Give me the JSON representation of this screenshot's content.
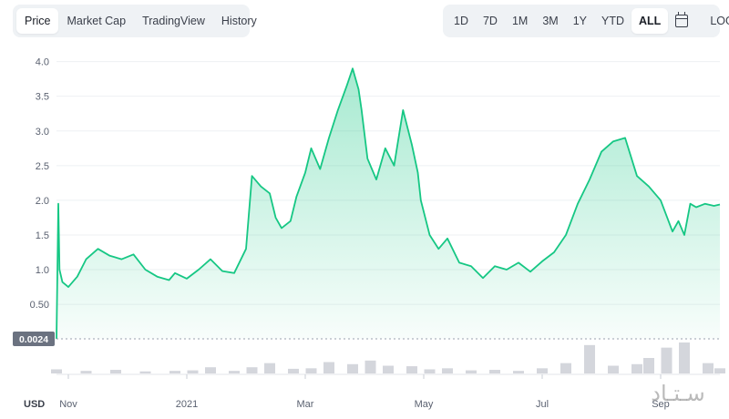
{
  "tabs": [
    {
      "label": "Price",
      "active": true
    },
    {
      "label": "Market Cap",
      "active": false
    },
    {
      "label": "TradingView",
      "active": false
    },
    {
      "label": "History",
      "active": false
    }
  ],
  "ranges": [
    {
      "label": "1D",
      "active": false
    },
    {
      "label": "7D",
      "active": false
    },
    {
      "label": "1M",
      "active": false
    },
    {
      "label": "3M",
      "active": false
    },
    {
      "label": "1Y",
      "active": false
    },
    {
      "label": "YTD",
      "active": false
    },
    {
      "label": "ALL",
      "active": true
    }
  ],
  "log_label": "LOG",
  "calendar_icon": "calendar-icon",
  "colors": {
    "line": "#16c784",
    "area_top": "#16c784",
    "volume": "#c9ccd3",
    "badge": "#6b7280"
  },
  "watermark_text": "سـتـاد",
  "chart_data": {
    "type": "area",
    "currency_label": "USD",
    "ylim": [
      0.0024,
      4.1
    ],
    "y_ticks": [
      "4.0",
      "3.5",
      "3.0",
      "2.5",
      "2.0",
      "1.5",
      "1.0",
      "0.50"
    ],
    "y_tick_values": [
      4.0,
      3.5,
      3.0,
      2.5,
      2.0,
      1.5,
      1.0,
      0.5
    ],
    "base_label": "0.0024",
    "base_value": 0.0024,
    "x_ticks": [
      {
        "label": "Nov",
        "month_index": 0.2
      },
      {
        "label": "2021",
        "month_index": 2.2
      },
      {
        "label": "Mar",
        "month_index": 4.2
      },
      {
        "label": "May",
        "month_index": 6.2
      },
      {
        "label": "Jul",
        "month_index": 8.2
      },
      {
        "label": "Sep",
        "month_index": 10.2
      }
    ],
    "x_domain": [
      0,
      11.2
    ],
    "grid": true,
    "series": [
      {
        "x": [
          0.0,
          0.03,
          0.05,
          0.1,
          0.2,
          0.35,
          0.5,
          0.7,
          0.9,
          1.1,
          1.3,
          1.5,
          1.7,
          1.9,
          2.0,
          2.2,
          2.4,
          2.6,
          2.8,
          3.0,
          3.2,
          3.3,
          3.45,
          3.6,
          3.7,
          3.8,
          3.95,
          4.05,
          4.2,
          4.3,
          4.45,
          4.6,
          4.75,
          4.9,
          5.0,
          5.1,
          5.15,
          5.25,
          5.4,
          5.55,
          5.7,
          5.85,
          6.0,
          6.1,
          6.15,
          6.3,
          6.45,
          6.6,
          6.8,
          7.0,
          7.2,
          7.4,
          7.6,
          7.8,
          8.0,
          8.2,
          8.4,
          8.6,
          8.8,
          9.0,
          9.2,
          9.4,
          9.6,
          9.8,
          10.0,
          10.2,
          10.4,
          10.5,
          10.6,
          10.7,
          10.8,
          10.95,
          11.1,
          11.2
        ],
        "y": [
          0.0024,
          1.95,
          1.0,
          0.82,
          0.75,
          0.9,
          1.15,
          1.3,
          1.2,
          1.15,
          1.22,
          1.0,
          0.9,
          0.85,
          0.95,
          0.87,
          1.0,
          1.15,
          0.98,
          0.95,
          1.3,
          2.35,
          2.2,
          2.1,
          1.75,
          1.6,
          1.7,
          2.05,
          2.4,
          2.75,
          2.45,
          2.9,
          3.3,
          3.65,
          3.9,
          3.6,
          3.3,
          2.6,
          2.3,
          2.75,
          2.5,
          3.3,
          2.8,
          2.4,
          2.0,
          1.5,
          1.3,
          1.45,
          1.1,
          1.05,
          0.88,
          1.05,
          1.0,
          1.1,
          0.97,
          1.12,
          1.25,
          1.5,
          1.95,
          2.3,
          2.7,
          2.85,
          2.9,
          2.35,
          2.2,
          2.0,
          1.55,
          1.7,
          1.5,
          1.95,
          1.9,
          1.95,
          1.92,
          1.94
        ]
      }
    ],
    "volume": {
      "x": [
        0.0,
        0.5,
        1.0,
        1.5,
        2.0,
        2.3,
        2.6,
        3.0,
        3.3,
        3.6,
        4.0,
        4.3,
        4.6,
        5.0,
        5.3,
        5.6,
        6.0,
        6.3,
        6.6,
        7.0,
        7.4,
        7.8,
        8.2,
        8.6,
        9.0,
        9.4,
        9.8,
        10.0,
        10.3,
        10.6,
        11.0,
        11.2
      ],
      "y": [
        0.08,
        0.05,
        0.07,
        0.04,
        0.05,
        0.06,
        0.12,
        0.05,
        0.12,
        0.2,
        0.09,
        0.1,
        0.22,
        0.18,
        0.25,
        0.15,
        0.14,
        0.08,
        0.1,
        0.06,
        0.07,
        0.05,
        0.1,
        0.2,
        0.55,
        0.15,
        0.18,
        0.3,
        0.5,
        0.6,
        0.2,
        0.1
      ]
    }
  }
}
